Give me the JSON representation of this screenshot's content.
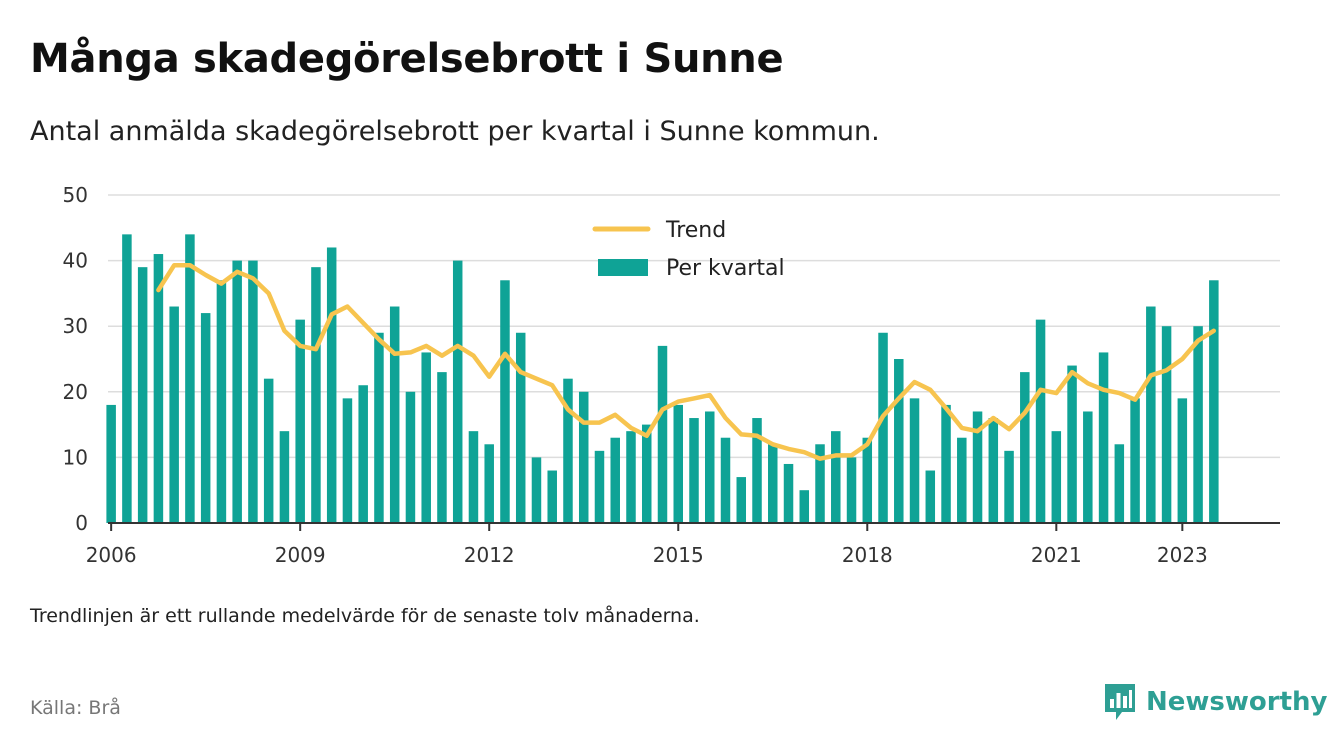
{
  "title": "Många skadegörelsebrott i Sunne",
  "subtitle": "Antal anmälda skadegörelsebrott per kvartal i Sunne kommun.",
  "footnote": "Trendlinjen är ett rullande medelvärde för de senaste tolv månaderna.",
  "source": "Källa: Brå",
  "brand": {
    "name": "Newsworthy",
    "icon": "newsworthy-logo-icon",
    "color": "#2e9f94"
  },
  "colors": {
    "bars": "#0fa396",
    "trend": "#f7c44f",
    "grid": "#dddddd",
    "axis": "#333333"
  },
  "chart_data": {
    "type": "bar",
    "legend": {
      "placement": "top-center",
      "entries": [
        "Trend",
        "Per kvartal"
      ]
    },
    "ylim": [
      0,
      50
    ],
    "yticks": [
      0,
      10,
      20,
      30,
      40,
      50
    ],
    "xtick_labels": [
      "2006",
      "2009",
      "2012",
      "2015",
      "2018",
      "2021",
      "2023"
    ],
    "xlim": [
      2005.95,
      2024.55
    ],
    "grid": true,
    "series": [
      {
        "name": "Per kvartal",
        "type": "bar",
        "x": [
          2006.0,
          2006.25,
          2006.5,
          2006.75,
          2007.0,
          2007.25,
          2007.5,
          2007.75,
          2008.0,
          2008.25,
          2008.5,
          2008.75,
          2009.0,
          2009.25,
          2009.5,
          2009.75,
          2010.0,
          2010.25,
          2010.5,
          2010.75,
          2011.0,
          2011.25,
          2011.5,
          2011.75,
          2012.0,
          2012.25,
          2012.5,
          2012.75,
          2013.0,
          2013.25,
          2013.5,
          2013.75,
          2014.0,
          2014.25,
          2014.5,
          2014.75,
          2015.0,
          2015.25,
          2015.5,
          2015.75,
          2016.0,
          2016.25,
          2016.5,
          2016.75,
          2017.0,
          2017.25,
          2017.5,
          2017.75,
          2018.0,
          2018.25,
          2018.5,
          2018.75,
          2019.0,
          2019.25,
          2019.5,
          2019.75,
          2020.0,
          2020.25,
          2020.5,
          2020.75,
          2021.0,
          2021.25,
          2021.5,
          2021.75,
          2022.0,
          2022.25,
          2022.5,
          2022.75,
          2023.0,
          2023.25,
          2023.5
        ],
        "values": [
          18,
          44,
          39,
          41,
          33,
          44,
          32,
          37,
          40,
          40,
          22,
          14,
          31,
          39,
          42,
          19,
          21,
          29,
          33,
          20,
          26,
          23,
          40,
          14,
          12,
          37,
          29,
          10,
          8,
          22,
          20,
          11,
          13,
          14,
          15,
          27,
          18,
          16,
          17,
          13,
          7,
          16,
          12,
          9,
          5,
          12,
          14,
          10,
          13,
          29,
          25,
          19,
          8,
          18,
          13,
          17,
          16,
          11,
          23,
          31,
          14,
          24,
          17,
          26,
          12,
          19,
          33,
          30,
          19,
          30,
          37
        ]
      },
      {
        "name": "Trend",
        "type": "line",
        "x": [
          2006.75,
          2007.0,
          2007.25,
          2007.5,
          2007.75,
          2008.0,
          2008.25,
          2008.5,
          2008.75,
          2009.0,
          2009.25,
          2009.5,
          2009.75,
          2010.0,
          2010.25,
          2010.5,
          2010.75,
          2011.0,
          2011.25,
          2011.5,
          2011.75,
          2012.0,
          2012.25,
          2012.5,
          2012.75,
          2013.0,
          2013.25,
          2013.5,
          2013.75,
          2014.0,
          2014.25,
          2014.5,
          2014.75,
          2015.0,
          2015.25,
          2015.5,
          2015.75,
          2016.0,
          2016.25,
          2016.5,
          2016.75,
          2017.0,
          2017.25,
          2017.5,
          2017.75,
          2018.0,
          2018.25,
          2018.5,
          2018.75,
          2019.0,
          2019.25,
          2019.5,
          2019.75,
          2020.0,
          2020.25,
          2020.5,
          2020.75,
          2021.0,
          2021.25,
          2021.5,
          2021.75,
          2022.0,
          2022.25,
          2022.5,
          2022.75,
          2023.0,
          2023.25,
          2023.5
        ],
        "values": [
          35.5,
          39.3,
          39.3,
          37.8,
          36.5,
          38.3,
          37.3,
          35.0,
          29.3,
          27.0,
          26.5,
          31.8,
          33.0,
          30.5,
          28.0,
          25.8,
          26.0,
          27.0,
          25.5,
          27.0,
          25.5,
          22.3,
          25.8,
          23.0,
          22.0,
          21.0,
          17.3,
          15.3,
          15.3,
          16.5,
          14.5,
          13.3,
          17.3,
          18.5,
          19.0,
          19.5,
          16.0,
          13.5,
          13.3,
          12.0,
          11.3,
          10.8,
          9.8,
          10.3,
          10.3,
          12.0,
          16.3,
          19.0,
          21.5,
          20.3,
          17.5,
          14.5,
          14.0,
          16.0,
          14.3,
          16.8,
          20.3,
          19.8,
          23.0,
          21.3,
          20.3,
          19.8,
          18.8,
          22.5,
          23.3,
          25.0,
          27.8,
          29.3
        ]
      }
    ]
  }
}
